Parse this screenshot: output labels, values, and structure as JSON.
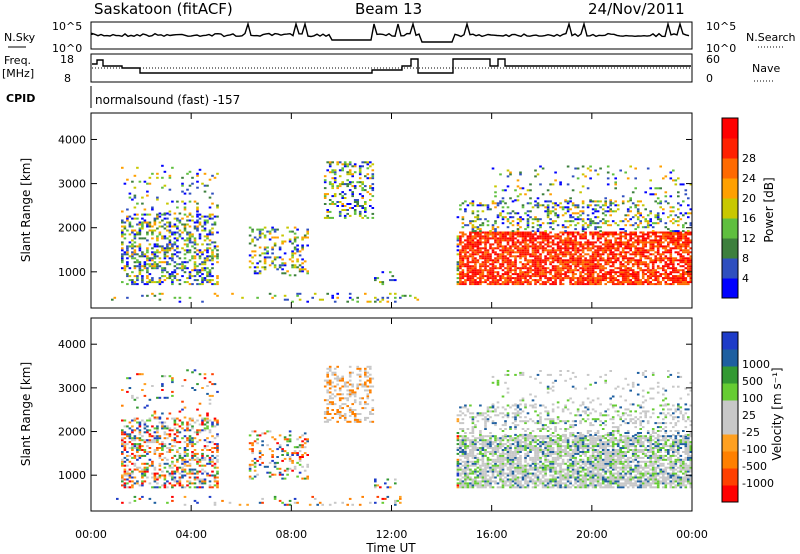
{
  "header": {
    "station": "Saskatoon (fitACF)",
    "beam": "Beam 13",
    "date": "24/Nov/2011"
  },
  "top_panels": {
    "nsky_label": "N.Sky",
    "nsky_ticks": [
      "10^5",
      "10^0"
    ],
    "nsearch_label": "N.Search",
    "nsearch_ticks": [
      "10^5",
      "10^0"
    ],
    "freq_label": "Freq.",
    "freq_unit": "[MHz]",
    "freq_ticks": [
      "18",
      "8"
    ],
    "nave_label": "Nave",
    "nave_ticks": [
      "60",
      "0"
    ],
    "cpid_label": "CPID",
    "cpid_value": "normalsound (fast) -157"
  },
  "colors": {
    "power": [
      "#0000ff",
      "#2f4fbf",
      "#3d7f3d",
      "#5fbf3f",
      "#c8c800",
      "#ffa000",
      "#ff6a00",
      "#ff2000",
      "#ff0000"
    ],
    "velocity": [
      "#ff0000",
      "#ff4000",
      "#ff8000",
      "#ffa020",
      "#c8c8c8",
      "#c8c8c8",
      "#66cc33",
      "#339933",
      "#1e5fa0",
      "#1e3cc8"
    ]
  },
  "chart_data": [
    {
      "type": "heatmap",
      "panel": "power",
      "ylabel": "Slant Range [km]",
      "yticks": [
        "1000",
        "2000",
        "3000",
        "4000"
      ],
      "ylim": [
        180,
        4600
      ],
      "xlabel": "Time UT",
      "xticks": [
        "00:00",
        "04:00",
        "08:00",
        "12:00",
        "16:00",
        "20:00",
        "00:00"
      ],
      "xlim": [
        0,
        24
      ],
      "colorbar_label": "Power [dB]",
      "colorbar_ticks": [
        "4",
        "8",
        "12",
        "16",
        "20",
        "24",
        "28"
      ],
      "clim": [
        0,
        30
      ]
    },
    {
      "type": "heatmap",
      "panel": "velocity",
      "ylabel": "Slant Range [km]",
      "yticks": [
        "1000",
        "2000",
        "3000",
        "4000"
      ],
      "ylim": [
        180,
        4600
      ],
      "xlabel": "Time UT",
      "xticks": [
        "00:00",
        "04:00",
        "08:00",
        "12:00",
        "16:00",
        "20:00",
        "00:00"
      ],
      "xlim": [
        0,
        24
      ],
      "colorbar_label": "Velocity [m s⁻¹]",
      "colorbar_ticks": [
        "1000",
        "500",
        "100",
        "25",
        "-25",
        "-100",
        "-500",
        "-1000"
      ]
    }
  ]
}
